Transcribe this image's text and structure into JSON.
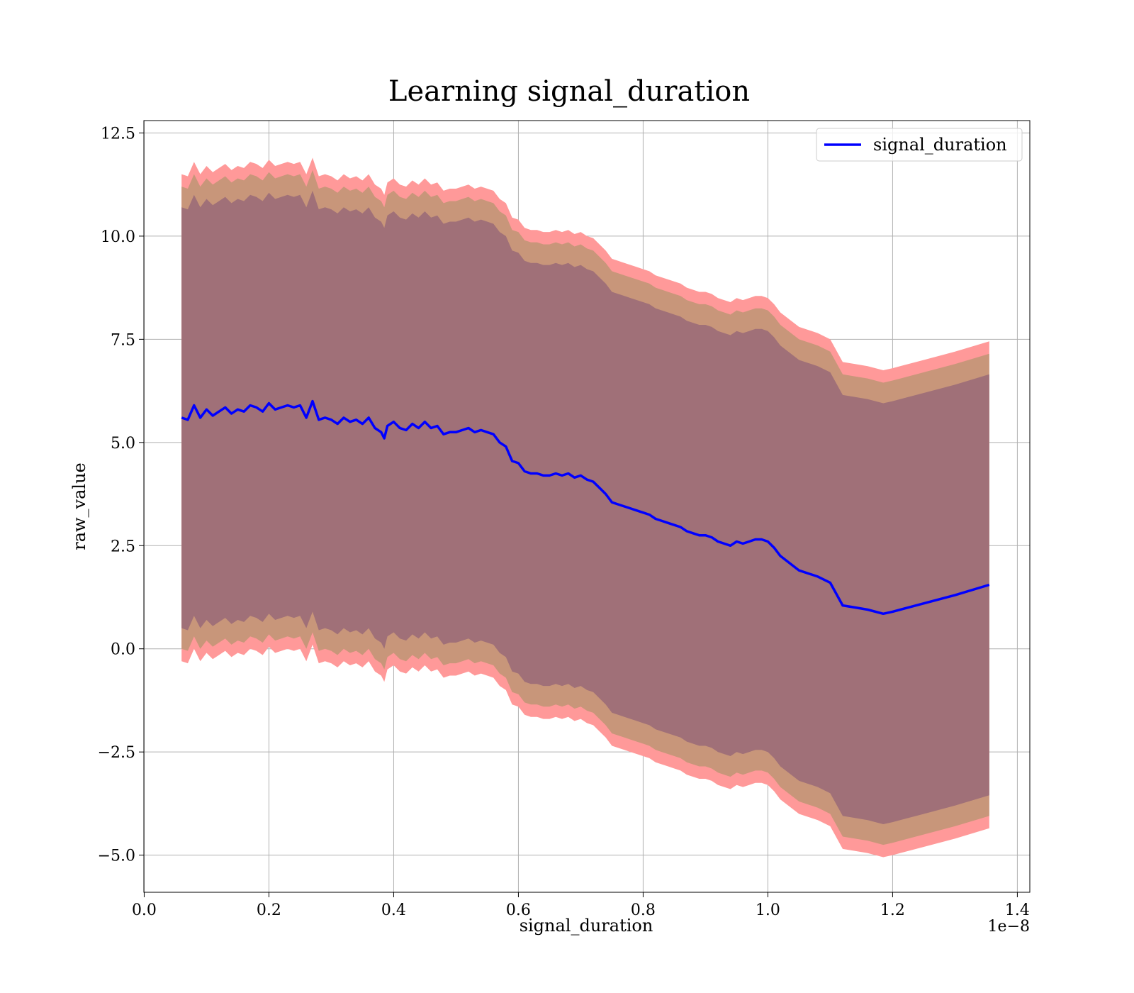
{
  "chart_data": {
    "type": "line",
    "title": "Learning signal_duration",
    "xlabel": "signal_duration",
    "ylabel": "raw_value",
    "x_offset_label": "1e−8",
    "xlim": [
      -0.0005,
      1.42
    ],
    "ylim": [
      -5.9,
      12.8
    ],
    "x_ticks": [
      0.0,
      0.2,
      0.4,
      0.6,
      0.8,
      1.0,
      1.2,
      1.4
    ],
    "x_tick_labels": [
      "0.0",
      "0.2",
      "0.4",
      "0.6",
      "0.8",
      "1.0",
      "1.2",
      "1.4"
    ],
    "y_ticks": [
      -5.0,
      -2.5,
      0.0,
      2.5,
      5.0,
      7.5,
      10.0,
      12.5
    ],
    "y_tick_labels": [
      "−5.0",
      "−2.5",
      "0.0",
      "2.5",
      "5.0",
      "7.5",
      "10.0",
      "12.5"
    ],
    "grid": true,
    "legend": {
      "position": "top-right",
      "entries": [
        "signal_duration"
      ]
    },
    "colors": {
      "line": "#0000ff",
      "band_outer": "#ff9999",
      "band_middle": "#c8967a",
      "band_inner": "#a07078"
    },
    "x": [
      0.06,
      0.07,
      0.08,
      0.09,
      0.1,
      0.11,
      0.12,
      0.13,
      0.14,
      0.15,
      0.16,
      0.17,
      0.18,
      0.19,
      0.2,
      0.21,
      0.22,
      0.23,
      0.24,
      0.25,
      0.26,
      0.27,
      0.28,
      0.29,
      0.3,
      0.31,
      0.32,
      0.33,
      0.34,
      0.35,
      0.36,
      0.37,
      0.38,
      0.385,
      0.39,
      0.4,
      0.41,
      0.42,
      0.43,
      0.44,
      0.45,
      0.46,
      0.47,
      0.48,
      0.49,
      0.5,
      0.51,
      0.52,
      0.53,
      0.54,
      0.55,
      0.56,
      0.57,
      0.58,
      0.59,
      0.6,
      0.61,
      0.62,
      0.63,
      0.64,
      0.65,
      0.66,
      0.67,
      0.68,
      0.69,
      0.7,
      0.71,
      0.72,
      0.73,
      0.74,
      0.75,
      0.76,
      0.77,
      0.78,
      0.79,
      0.8,
      0.81,
      0.82,
      0.83,
      0.84,
      0.85,
      0.86,
      0.87,
      0.88,
      0.89,
      0.9,
      0.91,
      0.92,
      0.93,
      0.94,
      0.95,
      0.96,
      0.97,
      0.98,
      0.99,
      1.0,
      1.01,
      1.02,
      1.05,
      1.08,
      1.1,
      1.12,
      1.14,
      1.16,
      1.185,
      1.2,
      1.25,
      1.3,
      1.355
    ],
    "series": [
      {
        "name": "signal_duration",
        "values": [
          5.6,
          5.55,
          5.9,
          5.6,
          5.8,
          5.65,
          5.75,
          5.85,
          5.7,
          5.8,
          5.75,
          5.9,
          5.85,
          5.75,
          5.95,
          5.8,
          5.85,
          5.9,
          5.85,
          5.9,
          5.6,
          6.0,
          5.55,
          5.6,
          5.55,
          5.45,
          5.6,
          5.5,
          5.55,
          5.45,
          5.6,
          5.35,
          5.25,
          5.1,
          5.4,
          5.5,
          5.35,
          5.3,
          5.45,
          5.35,
          5.5,
          5.35,
          5.4,
          5.2,
          5.25,
          5.25,
          5.3,
          5.35,
          5.25,
          5.3,
          5.25,
          5.2,
          5.0,
          4.9,
          4.55,
          4.5,
          4.3,
          4.25,
          4.25,
          4.2,
          4.2,
          4.25,
          4.2,
          4.25,
          4.15,
          4.2,
          4.1,
          4.05,
          3.9,
          3.75,
          3.55,
          3.5,
          3.45,
          3.4,
          3.35,
          3.3,
          3.25,
          3.15,
          3.1,
          3.05,
          3.0,
          2.95,
          2.85,
          2.8,
          2.75,
          2.75,
          2.7,
          2.6,
          2.55,
          2.5,
          2.6,
          2.55,
          2.6,
          2.65,
          2.65,
          2.6,
          2.45,
          2.25,
          1.9,
          1.75,
          1.6,
          1.05,
          1.0,
          0.95,
          0.85,
          0.9,
          1.1,
          1.3,
          1.55
        ]
      }
    ],
    "bands": [
      {
        "level": "outer",
        "offset_lower": [
          5.9,
          5.9,
          5.9,
          5.9,
          5.9,
          5.9,
          5.9,
          5.9,
          5.9,
          5.9,
          5.9,
          5.9,
          5.9,
          5.9,
          5.9,
          5.9,
          5.9,
          5.9,
          5.9,
          5.9,
          5.9,
          5.9,
          5.9,
          5.9,
          5.9,
          5.9,
          5.9,
          5.9,
          5.9,
          5.9,
          5.9,
          5.9,
          5.9,
          5.9,
          5.9,
          5.9,
          5.9,
          5.9,
          5.9,
          5.9,
          5.9,
          5.9,
          5.9,
          5.9,
          5.9,
          5.9,
          5.9,
          5.9,
          5.9,
          5.9,
          5.9,
          5.9,
          5.9,
          5.9,
          5.9,
          5.9,
          5.9,
          5.9,
          5.9,
          5.9,
          5.9,
          5.9,
          5.9,
          5.9,
          5.9,
          5.9,
          5.9,
          5.9,
          5.9,
          5.9,
          5.9,
          5.9,
          5.9,
          5.9,
          5.9,
          5.9,
          5.9,
          5.9,
          5.9,
          5.9,
          5.9,
          5.9,
          5.9,
          5.9,
          5.9,
          5.9,
          5.9,
          5.9,
          5.9,
          5.9,
          5.9,
          5.9,
          5.9,
          5.9,
          5.9,
          5.9,
          5.9,
          5.9,
          5.9,
          5.9,
          5.9,
          5.9,
          5.9,
          5.9,
          5.9,
          5.9,
          5.9,
          5.9,
          5.9
        ]
      },
      {
        "level": "middle",
        "offset_lower": [
          5.6,
          5.6,
          5.6,
          5.6,
          5.6,
          5.6,
          5.6,
          5.6,
          5.6,
          5.6,
          5.6,
          5.6,
          5.6,
          5.6,
          5.6,
          5.6,
          5.6,
          5.6,
          5.6,
          5.6,
          5.6,
          5.6,
          5.6,
          5.6,
          5.6,
          5.6,
          5.6,
          5.6,
          5.6,
          5.6,
          5.6,
          5.6,
          5.6,
          5.6,
          5.6,
          5.6,
          5.6,
          5.6,
          5.6,
          5.6,
          5.6,
          5.6,
          5.6,
          5.6,
          5.6,
          5.6,
          5.6,
          5.6,
          5.6,
          5.6,
          5.6,
          5.6,
          5.6,
          5.6,
          5.6,
          5.6,
          5.6,
          5.6,
          5.6,
          5.6,
          5.6,
          5.6,
          5.6,
          5.6,
          5.6,
          5.6,
          5.6,
          5.6,
          5.6,
          5.6,
          5.6,
          5.6,
          5.6,
          5.6,
          5.6,
          5.6,
          5.6,
          5.6,
          5.6,
          5.6,
          5.6,
          5.6,
          5.6,
          5.6,
          5.6,
          5.6,
          5.6,
          5.6,
          5.6,
          5.6,
          5.6,
          5.6,
          5.6,
          5.6,
          5.6,
          5.6,
          5.6,
          5.6,
          5.6,
          5.6,
          5.6,
          5.6,
          5.6,
          5.6,
          5.6,
          5.6,
          5.6,
          5.6,
          5.6
        ]
      },
      {
        "level": "inner",
        "offset_lower": [
          5.1,
          5.1,
          5.1,
          5.1,
          5.1,
          5.1,
          5.1,
          5.1,
          5.1,
          5.1,
          5.1,
          5.1,
          5.1,
          5.1,
          5.1,
          5.1,
          5.1,
          5.1,
          5.1,
          5.1,
          5.1,
          5.1,
          5.1,
          5.1,
          5.1,
          5.1,
          5.1,
          5.1,
          5.1,
          5.1,
          5.1,
          5.1,
          5.1,
          5.1,
          5.1,
          5.1,
          5.1,
          5.1,
          5.1,
          5.1,
          5.1,
          5.1,
          5.1,
          5.1,
          5.1,
          5.1,
          5.1,
          5.1,
          5.1,
          5.1,
          5.1,
          5.1,
          5.1,
          5.1,
          5.1,
          5.1,
          5.1,
          5.1,
          5.1,
          5.1,
          5.1,
          5.1,
          5.1,
          5.1,
          5.1,
          5.1,
          5.1,
          5.1,
          5.1,
          5.1,
          5.1,
          5.1,
          5.1,
          5.1,
          5.1,
          5.1,
          5.1,
          5.1,
          5.1,
          5.1,
          5.1,
          5.1,
          5.1,
          5.1,
          5.1,
          5.1,
          5.1,
          5.1,
          5.1,
          5.1,
          5.1,
          5.1,
          5.1,
          5.1,
          5.1,
          5.1,
          5.1,
          5.1,
          5.1,
          5.1,
          5.1,
          5.1,
          5.1,
          5.1,
          5.1,
          5.1,
          5.1,
          5.1,
          5.1
        ]
      }
    ]
  }
}
